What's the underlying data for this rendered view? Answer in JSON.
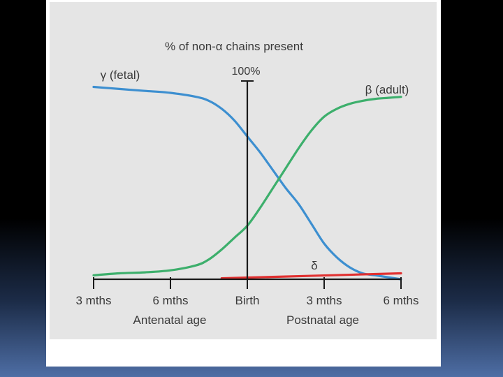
{
  "chart_data": {
    "type": "line",
    "title": "% of non-α chains present",
    "y_top_label": "100%",
    "ylim": [
      0,
      100
    ],
    "x_ticks": [
      "3 mths",
      "6 mths",
      "Birth",
      "3 mths",
      "6 mths"
    ],
    "x_tick_positions": [
      -6,
      -3,
      0,
      3,
      6
    ],
    "xlim": [
      -6,
      6
    ],
    "axis_group_labels": [
      "Antenatal age",
      "Postnatal age"
    ],
    "grid": false,
    "series": [
      {
        "name": "γ (fetal)",
        "color": "#3d8fd0",
        "x": [
          -6,
          -5,
          -4,
          -3,
          -2,
          -1.5,
          -1,
          -0.5,
          0,
          0.5,
          1,
          1.5,
          2,
          2.5,
          3,
          3.5,
          4,
          4.5,
          5,
          5.5,
          6
        ],
        "y": [
          97,
          96,
          95,
          94,
          92,
          90,
          86,
          80,
          72,
          64,
          55,
          46,
          38,
          28,
          18,
          11,
          6,
          3,
          2,
          1,
          0
        ]
      },
      {
        "name": "β (adult)",
        "color": "#3daf6c",
        "x": [
          -6,
          -5,
          -4,
          -3,
          -2,
          -1.5,
          -1,
          -0.5,
          0,
          0.5,
          1,
          1.5,
          2,
          2.5,
          3,
          3.5,
          4,
          4.5,
          5,
          5.5,
          6
        ],
        "y": [
          2,
          3,
          3.5,
          4.5,
          7,
          10,
          15,
          21,
          27,
          36,
          46,
          56,
          66,
          75,
          82,
          86,
          88.5,
          90,
          91,
          91.5,
          92
        ]
      },
      {
        "name": "δ",
        "color": "#e03030",
        "x": [
          -1,
          6
        ],
        "y": [
          0.5,
          3
        ]
      }
    ]
  }
}
